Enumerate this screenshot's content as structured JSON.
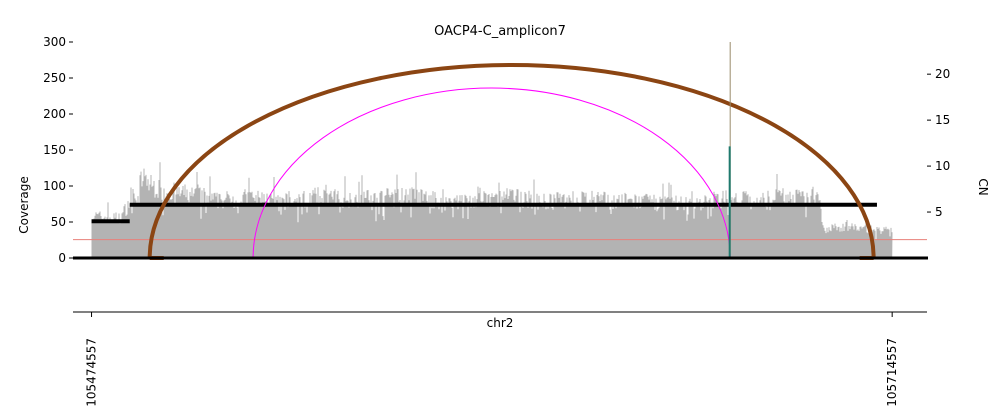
{
  "chart_data": {
    "type": "area",
    "title": "OACP4-C_amplicon7",
    "xlabel": "chr2",
    "ylabel": "Coverage",
    "ylabel_right": "CN",
    "xlim": [
      105469000,
      105725000
    ],
    "ylim": [
      0,
      300
    ],
    "ylim_right": [
      0,
      23.5
    ],
    "x_ticks": [
      105474557,
      105714557
    ],
    "x_tick_labels": [
      "105474557",
      "105714557"
    ],
    "y_ticks": [
      0,
      50,
      100,
      150,
      200,
      250,
      300
    ],
    "y_ticks_right": [
      5,
      10,
      15,
      20
    ],
    "grid": false,
    "legend": "none",
    "coverage_region": [
      105474557,
      105714557
    ],
    "coverage_profile": {
      "x": [
        105474557,
        105479000,
        105483000,
        105486500,
        105490000,
        105492000,
        105494000,
        105497000,
        105502000,
        105508000,
        105512000,
        105520000,
        105526000,
        105534000,
        105542000,
        105550000,
        105560000,
        105570000,
        105580000,
        105590000,
        105600000,
        105610000,
        105620000,
        105630000,
        105640000,
        105650000,
        105660000,
        105664000,
        105668000,
        105670500,
        105672000,
        105675000,
        105680000,
        105685000,
        105690000,
        105692500,
        105694000,
        105700000,
        105706000,
        105714557
      ],
      "values": [
        60,
        58,
        57,
        85,
        115,
        105,
        100,
        95,
        92,
        88,
        82,
        86,
        84,
        80,
        88,
        85,
        86,
        90,
        80,
        82,
        88,
        80,
        85,
        82,
        80,
        78,
        80,
        90,
        75,
        88,
        78,
        80,
        92,
        85,
        88,
        90,
        40,
        45,
        42,
        38
      ]
    },
    "cn_segments": [
      {
        "x": [
          105474557,
          105486000
        ],
        "cn": 4.0
      },
      {
        "x": [
          105486000,
          105710000
        ],
        "cn": 5.8
      }
    ],
    "breakpoints": [
      {
        "x": [
          105492000,
          105709000
        ],
        "cn": 21.0,
        "color": "#8B4513"
      },
      {
        "x": [
          105523000,
          105666000
        ],
        "cn": 18.5,
        "color": "#ff00ff"
      }
    ],
    "spike": {
      "x": 105666000,
      "coverage": 155
    },
    "baseline_cn": 2.0,
    "colors": {
      "coverage": "#b3b3b3",
      "cn_segment": "#000000",
      "baseline": "#e8807a",
      "spike": "#1f7a6e",
      "spike_line": "#9a8b6a"
    }
  }
}
